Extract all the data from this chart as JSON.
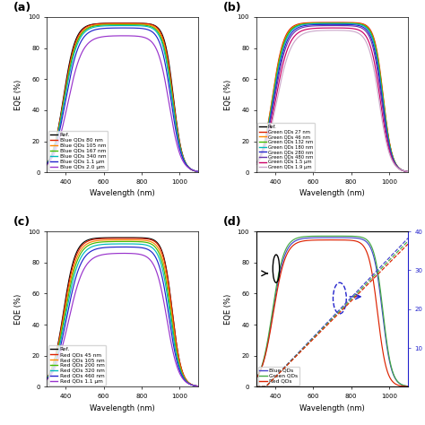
{
  "panel_a_legend": [
    {
      "label": "Ref.",
      "color": "#000000"
    },
    {
      "label": "Blue QDs 80 nm",
      "color": "#dd2200"
    },
    {
      "label": "Blue QDs 105 nm",
      "color": "#ff8800"
    },
    {
      "label": "Blue QDs 167 nm",
      "color": "#44bb00"
    },
    {
      "label": "Blue QDs 340 nm",
      "color": "#00bbbb"
    },
    {
      "label": "Blue QDs 1.1 μm",
      "color": "#2222cc"
    },
    {
      "label": "Blue QDs 2.0 μm",
      "color": "#9933cc"
    }
  ],
  "panel_b_legend": [
    {
      "label": "Ref.",
      "color": "#000000"
    },
    {
      "label": "Green QDs 27 nm",
      "color": "#dd2200"
    },
    {
      "label": "Green QDs 46 nm",
      "color": "#ff8800"
    },
    {
      "label": "Green QDs 132 nm",
      "color": "#44bb00"
    },
    {
      "label": "Green QDs 180 nm",
      "color": "#00bbbb"
    },
    {
      "label": "Green QDs 280 nm",
      "color": "#2222cc"
    },
    {
      "label": "Green QDs 480 nm",
      "color": "#6633aa"
    },
    {
      "label": "Green QDs 1.5 μm",
      "color": "#cc0066"
    },
    {
      "label": "Green QDs 1.9 μm",
      "color": "#ccaacc"
    }
  ],
  "panel_c_legend": [
    {
      "label": "Ref.",
      "color": "#000000"
    },
    {
      "label": "Red QDs 45 nm",
      "color": "#dd2200"
    },
    {
      "label": "Red QDs 105 nm",
      "color": "#ff8800"
    },
    {
      "label": "Red QDs 200 nm",
      "color": "#44bb00"
    },
    {
      "label": "Red QDs 320 nm",
      "color": "#00bbbb"
    },
    {
      "label": "Red QDs 460 nm",
      "color": "#2222cc"
    },
    {
      "label": "Red QDs 1.1 μm",
      "color": "#9933cc"
    }
  ],
  "panel_d_solid_legend": [
    {
      "label": "Blue QDs",
      "color": "#4444cc"
    },
    {
      "label": "Green QDs",
      "color": "#44aa44"
    },
    {
      "label": "Red QDs",
      "color": "#dd2200"
    }
  ],
  "panel_d_dashed_colors": [
    "#4444cc",
    "#44aa44",
    "#dd2200"
  ],
  "wavelength_range": [
    300,
    1100
  ],
  "eqe_ylim": [
    0,
    100
  ],
  "xlabel": "Wavelength (nm)",
  "ylabel": "EQE (%)",
  "panel_d_y2label": "",
  "panel_d_y2lim": [
    0,
    40
  ],
  "panel_d_y2ticks": [
    10,
    20,
    30,
    40
  ]
}
